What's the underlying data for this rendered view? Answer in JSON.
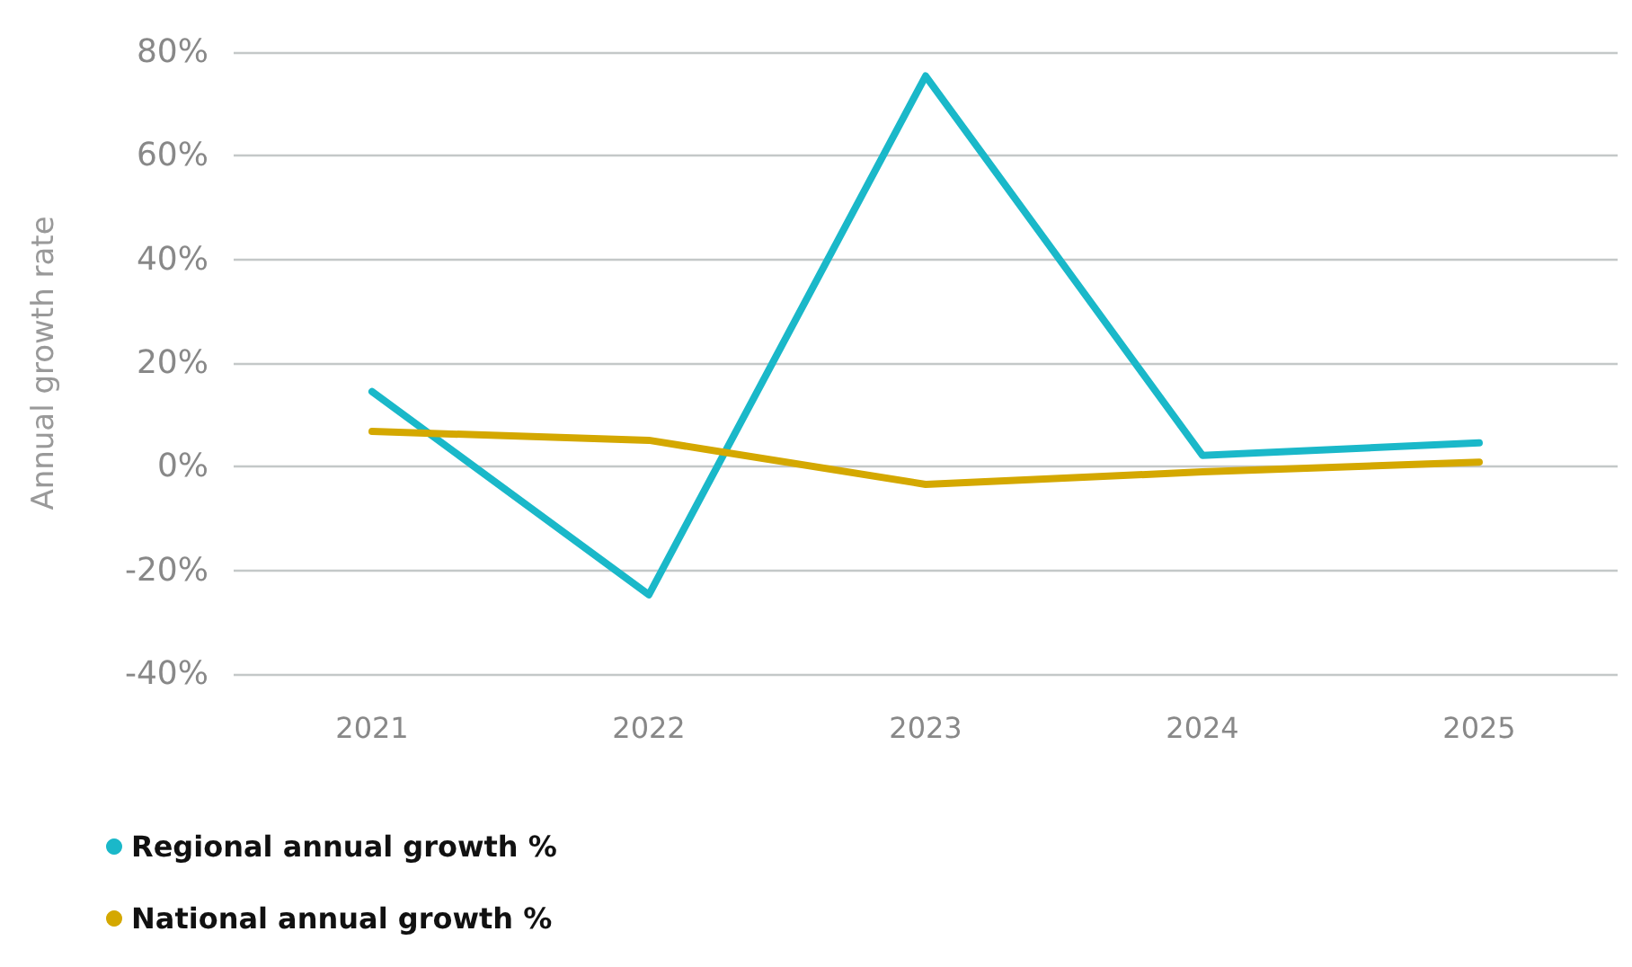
{
  "chart_data": {
    "type": "line",
    "ylabel": "Annual growth rate",
    "categories": [
      "2021",
      "2022",
      "2023",
      "2024",
      "2025"
    ],
    "series": [
      {
        "name": "Regional annual growth %",
        "color": "#1ab8c9",
        "values": [
          14.5,
          -24.7,
          75.4,
          2.2,
          4.6
        ]
      },
      {
        "name": "National annual growth %",
        "color": "#d4a800",
        "values": [
          6.8,
          5.1,
          -3.4,
          -1,
          0.9
        ]
      }
    ],
    "ylim": [
      -40,
      80
    ],
    "yticks": [
      {
        "value": -40,
        "label": "-40%"
      },
      {
        "value": -20,
        "label": "-20%"
      },
      {
        "value": 0,
        "label": "0%"
      },
      {
        "value": 20,
        "label": "20%"
      },
      {
        "value": 40,
        "label": "40%"
      },
      {
        "value": 60,
        "label": "60%"
      },
      {
        "value": 80,
        "label": "80%"
      }
    ],
    "grid": "y",
    "legend": "bottom left",
    "marker": "none",
    "line_style": "solid"
  }
}
